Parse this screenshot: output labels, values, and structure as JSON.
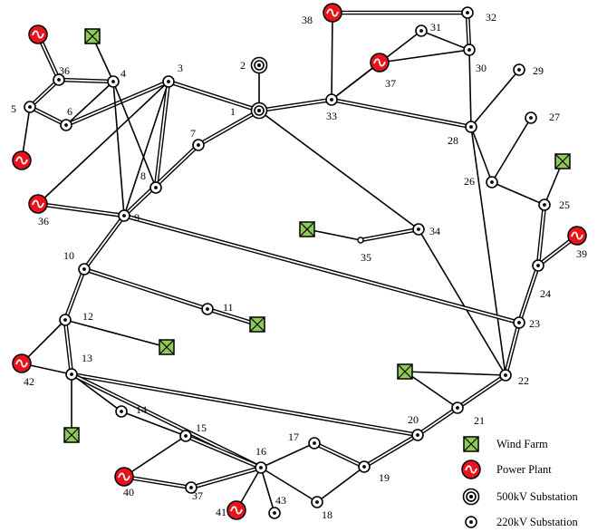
{
  "legend": [
    {
      "key": "wind",
      "label": "Wind Farm"
    },
    {
      "key": "plant",
      "label": "Power Plant"
    },
    {
      "key": "s500",
      "label": "500kV Substation"
    },
    {
      "key": "s220",
      "label": "220kV Substation"
    }
  ],
  "colors": {
    "wind_fill": "#8fc95a",
    "plant_fill": "#e8141c",
    "line": "#000000"
  },
  "node_labels": [
    "1",
    "2",
    "3",
    "4",
    "5",
    "6",
    "7",
    "8",
    "9",
    "10",
    "11",
    "12",
    "13",
    "14",
    "15",
    "16",
    "17",
    "18",
    "19",
    "20",
    "21",
    "22",
    "23",
    "24",
    "25",
    "26",
    "27",
    "28",
    "29",
    "30",
    "31",
    "32",
    "33",
    "34",
    "35",
    "36",
    "36",
    "37",
    "37",
    "38",
    "39",
    "40",
    "41",
    "42",
    "43"
  ]
}
